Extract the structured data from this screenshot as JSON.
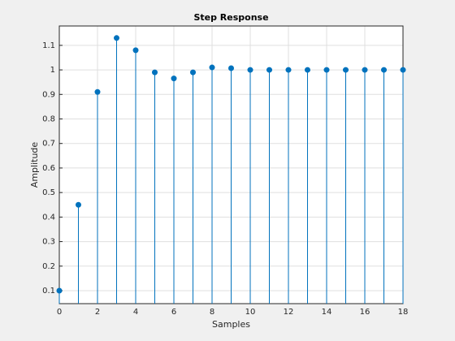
{
  "chart_data": {
    "type": "stem",
    "title": "Step Response",
    "x_label": "Samples",
    "y_label": "Amplitude",
    "x": [
      0,
      1,
      2,
      3,
      4,
      5,
      6,
      7,
      8,
      9,
      10,
      11,
      12,
      13,
      14,
      15,
      16,
      17,
      18
    ],
    "values": [
      0.1,
      0.45,
      0.91,
      1.13,
      1.08,
      0.99,
      0.965,
      0.99,
      1.01,
      1.007,
      1.0,
      1.0,
      1.0,
      1.0,
      1.0,
      1.0,
      1.0,
      1.0,
      1.0
    ],
    "color": "#0072bd",
    "xlim": [
      0,
      18
    ],
    "xticks": [
      0,
      2,
      4,
      6,
      8,
      10,
      12,
      14,
      16,
      18
    ],
    "ylim": [
      0.047,
      1.179
    ],
    "yticks": [
      0.1,
      0.2,
      0.3,
      0.4,
      0.5,
      0.6,
      0.7,
      0.8,
      0.9,
      1,
      1.1
    ],
    "grid": true
  }
}
